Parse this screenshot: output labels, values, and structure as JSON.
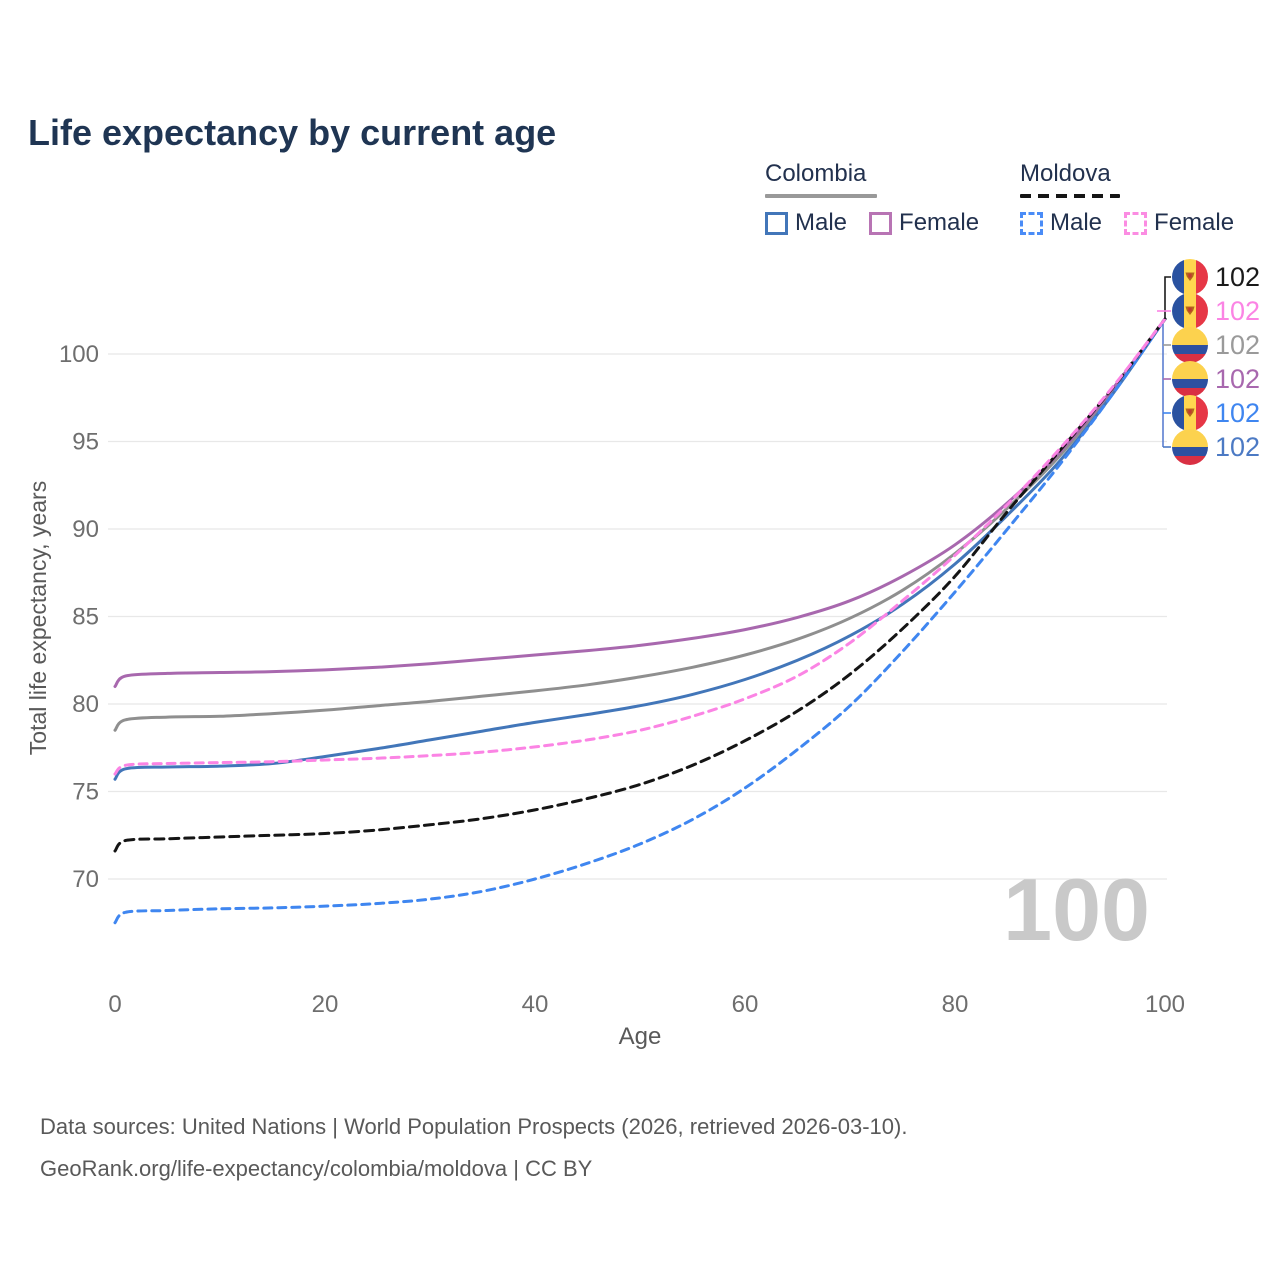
{
  "title": "Life expectancy by current age",
  "legend": {
    "groups": [
      {
        "label": "Colombia",
        "underline_style": "solid",
        "underline_color": "#999999",
        "items": [
          {
            "label": "Male",
            "color": "#4276b9",
            "dashed": false
          },
          {
            "label": "Female",
            "color": "#b874b4",
            "dashed": false
          }
        ]
      },
      {
        "label": "Moldova",
        "underline_style": "dashed",
        "underline_color": "#151515",
        "items": [
          {
            "label": "Male",
            "color": "#4a8cf7",
            "dashed": true
          },
          {
            "label": "Female",
            "color": "#fb8ce2",
            "dashed": true
          }
        ]
      }
    ]
  },
  "chart_data": {
    "type": "line",
    "title": "Life expectancy by current age",
    "xlabel": "Age",
    "ylabel": "Total life expectancy, years",
    "x_ticks": [
      0,
      20,
      40,
      60,
      80,
      100
    ],
    "y_ticks": [
      70,
      75,
      80,
      85,
      90,
      95,
      100
    ],
    "xlim": [
      0,
      100
    ],
    "ylim": [
      66,
      103
    ],
    "grid": "horizontal-only",
    "legend_position": "top-right",
    "ages": [
      0,
      1,
      5,
      10,
      15,
      20,
      25,
      30,
      35,
      40,
      45,
      50,
      55,
      60,
      65,
      70,
      75,
      80,
      85,
      90,
      95,
      100
    ],
    "series": [
      {
        "name": "Colombia",
        "country": "colombia",
        "slug": "colombia-total",
        "color": "#8f8f8f",
        "dash": null,
        "values": [
          78.5,
          79.1,
          79.25,
          79.3,
          79.45,
          79.65,
          79.9,
          80.15,
          80.45,
          80.75,
          81.1,
          81.55,
          82.1,
          82.8,
          83.7,
          84.9,
          86.5,
          88.6,
          91.2,
          94.2,
          97.9,
          102
        ]
      },
      {
        "name": "Colombia Female",
        "country": "colombia",
        "slug": "colombia-female",
        "color": "#a868ae",
        "dash": null,
        "values": [
          81.0,
          81.6,
          81.75,
          81.8,
          81.85,
          81.95,
          82.1,
          82.3,
          82.55,
          82.8,
          83.05,
          83.35,
          83.75,
          84.25,
          84.95,
          85.9,
          87.3,
          89.1,
          91.5,
          94.4,
          98.0,
          102
        ]
      },
      {
        "name": "Colombia Male",
        "country": "colombia",
        "slug": "colombia-male",
        "color": "#4276b9",
        "dash": null,
        "values": [
          75.7,
          76.3,
          76.4,
          76.45,
          76.6,
          77.0,
          77.45,
          77.95,
          78.45,
          78.95,
          79.4,
          79.9,
          80.55,
          81.4,
          82.5,
          83.9,
          85.7,
          88.0,
          90.8,
          93.9,
          97.7,
          102
        ]
      },
      {
        "name": "Moldova Male",
        "country": "moldova",
        "slug": "moldova-male",
        "color": "#3f86f0",
        "dash": "8 6",
        "values": [
          67.5,
          68.1,
          68.2,
          68.3,
          68.35,
          68.45,
          68.6,
          68.85,
          69.3,
          70.0,
          70.9,
          72.0,
          73.4,
          75.2,
          77.4,
          79.9,
          83.0,
          86.4,
          90.0,
          93.7,
          97.7,
          102
        ]
      },
      {
        "name": "Moldova",
        "country": "moldova",
        "slug": "moldova-total",
        "color": "#151515",
        "dash": "9 6",
        "values": [
          71.6,
          72.2,
          72.3,
          72.4,
          72.5,
          72.6,
          72.8,
          73.1,
          73.45,
          73.95,
          74.6,
          75.4,
          76.5,
          77.9,
          79.6,
          81.7,
          84.3,
          87.3,
          91.0,
          94.5,
          98.05,
          102
        ]
      },
      {
        "name": "Moldova Female",
        "country": "moldova",
        "slug": "moldova-female",
        "color": "#fb84e4",
        "dash": "8 6",
        "values": [
          76.0,
          76.5,
          76.6,
          76.65,
          76.7,
          76.8,
          76.9,
          77.05,
          77.25,
          77.55,
          77.95,
          78.5,
          79.3,
          80.3,
          81.6,
          83.5,
          85.9,
          88.5,
          91.4,
          94.6,
          98.1,
          102
        ]
      }
    ],
    "end_value_annotations": [
      {
        "series": "Moldova",
        "country": "moldova",
        "slug": "moldova-total",
        "value": "102",
        "color": "#1a1a1a"
      },
      {
        "series": "Moldova Female",
        "country": "moldova",
        "slug": "moldova-female",
        "value": "102",
        "color": "#fb84e4"
      },
      {
        "series": "Colombia",
        "country": "colombia",
        "slug": "colombia-total",
        "value": "102",
        "color": "#9a9a9a"
      },
      {
        "series": "Colombia Female",
        "country": "colombia",
        "slug": "colombia-female",
        "value": "102",
        "color": "#a868ae"
      },
      {
        "series": "Moldova Male",
        "country": "moldova",
        "slug": "moldova-male",
        "value": "102",
        "color": "#3f86f0"
      },
      {
        "series": "Colombia Male",
        "country": "colombia",
        "slug": "colombia-male",
        "value": "102",
        "color": "#4c7ac4"
      }
    ]
  },
  "watermark_age": "100",
  "footer": {
    "line1": "Data sources: United Nations | World Population Prospects (2026, retrieved 2026-03-10).",
    "line2": "GeoRank.org/life-expectancy/colombia/moldova | CC BY"
  }
}
